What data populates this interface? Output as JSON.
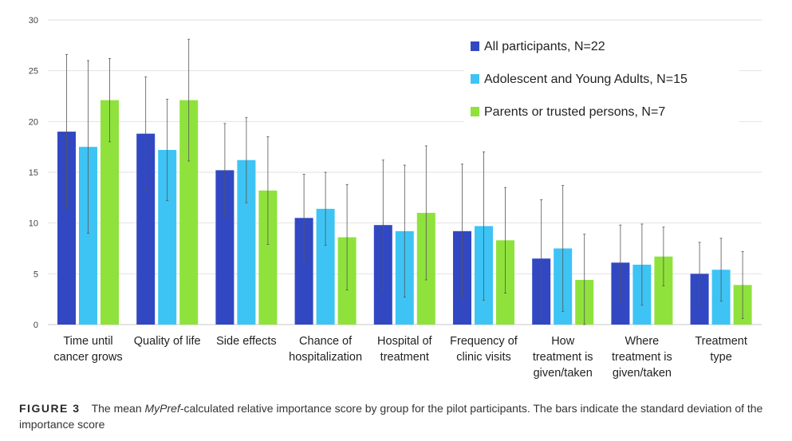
{
  "chart_data": {
    "type": "bar",
    "title": "",
    "xlabel": "",
    "ylabel": "",
    "ylim": [
      0,
      30
    ],
    "yticks": [
      0,
      5,
      10,
      15,
      20,
      25,
      30
    ],
    "grid": true,
    "legend_position": "top-right",
    "categories": [
      [
        "Time until",
        "cancer grows"
      ],
      [
        "Quality of life"
      ],
      [
        "Side effects"
      ],
      [
        "Chance of",
        "hospitalization"
      ],
      [
        "Hospital of",
        "treatment"
      ],
      [
        "Frequency of",
        "clinic visits"
      ],
      [
        "How",
        "treatment is",
        "given/taken"
      ],
      [
        "Where",
        "treatment is",
        "given/taken"
      ],
      [
        "Treatment",
        "type"
      ]
    ],
    "series": [
      {
        "name": "All participants, N=22",
        "color": "#3148c2",
        "values": [
          19.0,
          18.8,
          15.2,
          10.5,
          9.8,
          9.2,
          6.5,
          6.1,
          5.0
        ],
        "sd": [
          7.6,
          5.6,
          4.6,
          4.3,
          6.4,
          6.6,
          5.8,
          3.7,
          3.1
        ]
      },
      {
        "name": "Adolescent and Young Adults, N=15",
        "color": "#3dc4f4",
        "values": [
          17.5,
          17.2,
          16.2,
          11.4,
          9.2,
          9.7,
          7.5,
          5.9,
          5.4
        ],
        "sd": [
          8.5,
          5.0,
          4.2,
          3.6,
          6.5,
          7.3,
          6.2,
          4.0,
          3.1
        ]
      },
      {
        "name": "Parents or trusted persons, N=7",
        "color": "#8fe23c",
        "values": [
          22.1,
          22.1,
          13.2,
          8.6,
          11.0,
          8.3,
          4.4,
          6.7,
          3.9
        ],
        "sd": [
          4.1,
          6.0,
          5.3,
          5.2,
          6.6,
          5.2,
          4.5,
          2.9,
          3.3
        ]
      }
    ]
  },
  "caption": {
    "label": "FIGURE 3",
    "text_before": "The mean ",
    "text_italic": "MyPref",
    "text_after": "-calculated relative importance score by group for the pilot participants. The bars indicate the standard deviation of the importance score"
  }
}
